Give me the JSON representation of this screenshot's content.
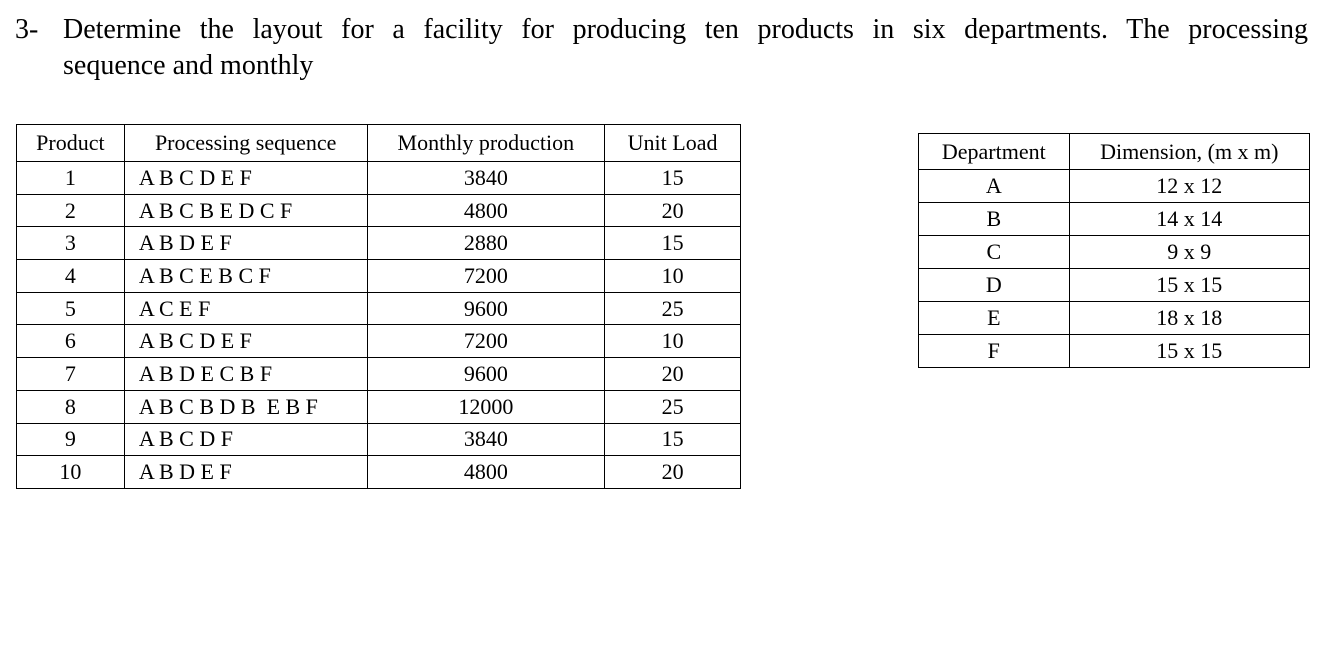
{
  "question": {
    "number": "3-",
    "lines": [
      "Determine the layout for a facility for producing ten products in six departments. The processing",
      "sequence and monthly"
    ]
  },
  "products_table": {
    "headers": [
      "Product",
      "Processing sequence",
      "Monthly production",
      "Unit Load"
    ],
    "rows": [
      [
        "1",
        "A B C D E F",
        "3840",
        "15"
      ],
      [
        "2",
        "A B C B E D C F",
        "4800",
        "20"
      ],
      [
        "3",
        "A B D E F",
        "2880",
        "15"
      ],
      [
        "4",
        "A B C E B C F",
        "7200",
        "10"
      ],
      [
        "5",
        "A C E F",
        "9600",
        "25"
      ],
      [
        "6",
        "A B C D E F",
        "7200",
        "10"
      ],
      [
        "7",
        "A B D E C B F",
        "9600",
        "20"
      ],
      [
        "8",
        "A B C B D B  E B F",
        "12000",
        "25"
      ],
      [
        "9",
        "A B C D F",
        "3840",
        "15"
      ],
      [
        "10",
        "A B D E F",
        "4800",
        "20"
      ]
    ]
  },
  "departments_table": {
    "headers": [
      "Department",
      "Dimension, (m x m)"
    ],
    "rows": [
      [
        "A",
        "12 x 12"
      ],
      [
        "B",
        "14 x 14"
      ],
      [
        "C",
        "9 x 9"
      ],
      [
        "D",
        "15 x 15"
      ],
      [
        "E",
        "18 x 18"
      ],
      [
        "F",
        "15 x 15"
      ]
    ]
  }
}
